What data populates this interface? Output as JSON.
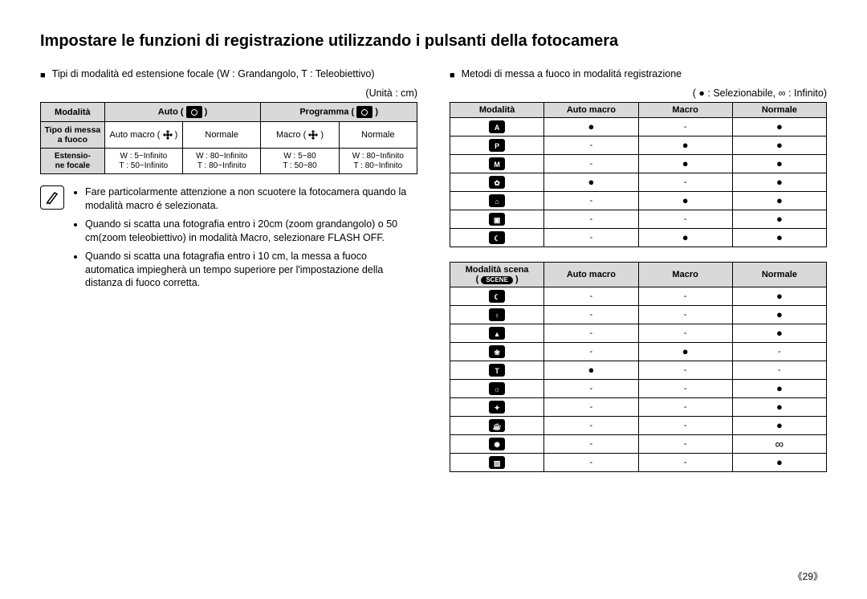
{
  "title": "Impostare le funzioni di registrazione utilizzando i pulsanti della fotocamera",
  "left": {
    "lead": "Tipi di modalità ed estensione focale (W : Grandangolo, T : Teleobiettivo)",
    "unit": "(Unità : cm)",
    "table": {
      "headers": {
        "mode": "Modalità",
        "auto": "Auto (",
        "program": "Programma ("
      },
      "closeParen": ")",
      "row1_head": "Tipo di messa a fuoco",
      "row1": {
        "c1": "Auto macro (",
        "c2": "Normale",
        "c3": "Macro (",
        "c4": "Normale"
      },
      "row2_head": "Estensio-\nne focale",
      "row2": {
        "c1": "W : 5~Infinito\nT : 50~Infinito",
        "c2": "W : 80~Infinito\nT : 80~Infinito",
        "c3": "W : 5~80\nT : 50~80",
        "c4": "W : 80~Infinito\nT : 80~Infinito"
      }
    },
    "notes": [
      "Fare particolarmente attenzione a non scuotere la fotocamera quando la modalità macro é selezionata.",
      "Quando si scatta una fotografia entro i 20cm (zoom grandangolo) o 50 cm(zoom teleobiettivo) in modalità Macro, selezionare FLASH OFF.",
      "Quando si scatta una fotagrafia entro i 10 cm, la messa a fuoco automatica impiegherà un tempo superiore per l'impostazione della distanza di fuoco corretta."
    ]
  },
  "right": {
    "lead": "Metodi di messa a fuoco in modalitá registrazione",
    "legend_selectable": "Selezionabile,",
    "legend_infinite": "Infinito)",
    "table1": {
      "headers": {
        "mode": "Modalità",
        "automacro": "Auto  macro",
        "macro": "Macro",
        "normale": "Normale"
      },
      "rows": [
        {
          "automacro": "●",
          "macro": "-",
          "normale": "●"
        },
        {
          "automacro": "-",
          "macro": "●",
          "normale": "●"
        },
        {
          "automacro": "-",
          "macro": "●",
          "normale": "●"
        },
        {
          "automacro": "●",
          "macro": "-",
          "normale": "●"
        },
        {
          "automacro": "-",
          "macro": "●",
          "normale": "●"
        },
        {
          "automacro": "-",
          "macro": "-",
          "normale": "●"
        },
        {
          "automacro": "-",
          "macro": "●",
          "normale": "●"
        }
      ]
    },
    "table2": {
      "headers": {
        "mode": "Modalità scena",
        "automacro": "Auto  macro",
        "macro": "Macro",
        "normale": "Normale"
      },
      "rows": [
        {
          "automacro": "-",
          "macro": "-",
          "normale": "●"
        },
        {
          "automacro": "-",
          "macro": "-",
          "normale": "●"
        },
        {
          "automacro": "-",
          "macro": "-",
          "normale": "●"
        },
        {
          "automacro": "-",
          "macro": "●",
          "normale": "-"
        },
        {
          "automacro": "●",
          "macro": "-",
          "normale": "-"
        },
        {
          "automacro": "-",
          "macro": "-",
          "normale": "●"
        },
        {
          "automacro": "-",
          "macro": "-",
          "normale": "●"
        },
        {
          "automacro": "-",
          "macro": "-",
          "normale": "●"
        },
        {
          "automacro": "-",
          "macro": "-",
          "normale": "∞"
        },
        {
          "automacro": "-",
          "macro": "-",
          "normale": "●"
        }
      ]
    }
  },
  "pagenum": "《29》",
  "symbols": {
    "dot": "●",
    "inf": "∞",
    "open_paren_dot": "( ● :  ",
    "inf_colon": " ∞ :  "
  },
  "scene_label": "SCENE",
  "mode_icons_t1": [
    "A",
    "P",
    "M",
    "✿",
    "⌂",
    "▣",
    "☾"
  ],
  "mode_icons_t2": [
    "☾",
    "♀",
    "▲",
    "❀",
    "T",
    "☼",
    "✦",
    "☕",
    "✺",
    "▨"
  ]
}
